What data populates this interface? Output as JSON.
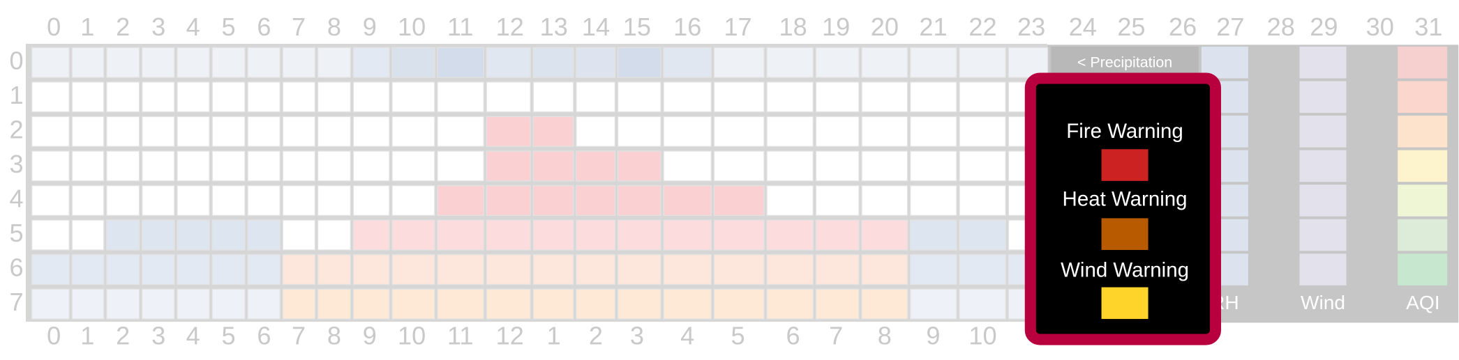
{
  "top_labels": [
    "0",
    "1",
    "2",
    "3",
    "4",
    "5",
    "6",
    "7",
    "8",
    "9",
    "10",
    "11",
    "12",
    "13",
    "14",
    "15",
    "16",
    "17",
    "18",
    "19",
    "20",
    "21",
    "22",
    "23",
    "24",
    "25",
    "26",
    "27",
    "28",
    "29",
    "30",
    "31"
  ],
  "row_labels": [
    "0",
    "1",
    "2",
    "3",
    "4",
    "5",
    "6",
    "7"
  ],
  "bottom_labels": [
    "0",
    "1",
    "2",
    "3",
    "4",
    "5",
    "6",
    "7",
    "8",
    "9",
    "10",
    "11",
    "12",
    "1",
    "2",
    "3",
    "4",
    "5",
    "6",
    "7",
    "8",
    "9",
    "10"
  ],
  "side_panel": {
    "button": "< Precipitation",
    "columns": [
      "RH",
      "Wind",
      "AQI"
    ]
  },
  "popup": {
    "items": [
      {
        "label": "Fire Warning",
        "color": "#cc2222"
      },
      {
        "label": "Heat Warning",
        "color": "#b85a00"
      },
      {
        "label": "Wind Warning",
        "color": "#ffd42a"
      }
    ]
  }
}
